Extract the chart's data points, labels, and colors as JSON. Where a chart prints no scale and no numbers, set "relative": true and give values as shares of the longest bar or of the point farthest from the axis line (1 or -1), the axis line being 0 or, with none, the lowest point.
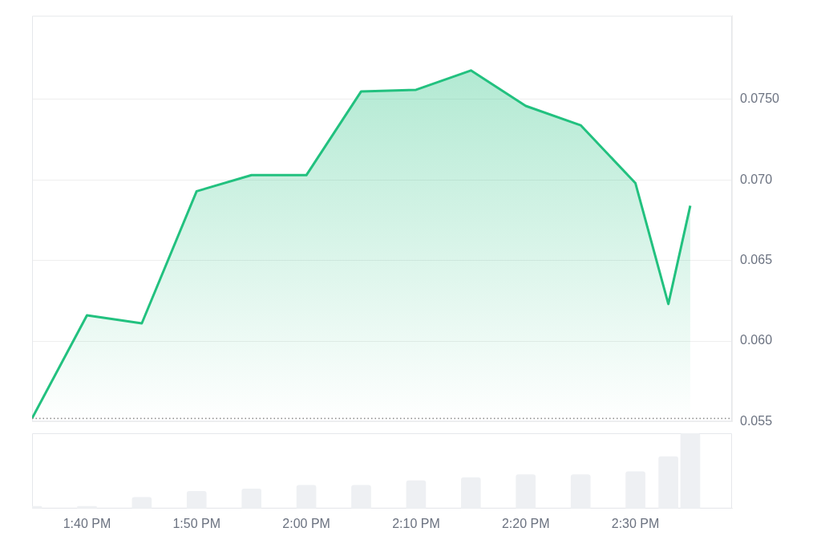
{
  "chart_data": [
    {
      "type": "area",
      "x": [
        13.5833,
        13.6667,
        13.75,
        13.8333,
        13.9167,
        14.0,
        14.0833,
        14.1667,
        14.25,
        14.3333,
        14.4167,
        14.5,
        14.55,
        14.5833
      ],
      "series": [
        {
          "color": "#22c17f",
          "values": [
            0.0552,
            0.0616,
            0.0611,
            0.0693,
            0.0703,
            0.0703,
            0.0755,
            0.0756,
            0.0768,
            0.0746,
            0.0734,
            0.0698,
            0.0623,
            0.0684
          ]
        }
      ],
      "xlim": [
        13.5833,
        14.6467
      ],
      "ylim": [
        0.055,
        0.0802
      ],
      "xticks": [
        {
          "value": 13.6667,
          "label": null
        },
        {
          "value": 13.8333,
          "label": null
        },
        {
          "value": 14.0,
          "label": null
        },
        {
          "value": 14.1667,
          "label": null
        },
        {
          "value": 14.3333,
          "label": null
        },
        {
          "value": 14.5,
          "label": null
        }
      ],
      "yticks": [
        0.055,
        {
          "value": 0.06,
          "label": "0.060"
        },
        0.065,
        {
          "value": 0.07,
          "label": "0.070"
        },
        {
          "value": 0.075,
          "label": "0.0750"
        }
      ],
      "ref_lines": [
        {
          "axis": "y",
          "value": 0.0552,
          "color": "#888888",
          "line_style": "dotted"
        }
      ],
      "grid": "y",
      "legend": false,
      "tick_labels": "y",
      "marker": "none",
      "line_style": "solid"
    },
    {
      "type": "bar",
      "relative": true,
      "x": [
        13.5833,
        13.6667,
        13.75,
        13.8333,
        13.9167,
        14.0,
        14.0833,
        14.1667,
        14.25,
        14.3333,
        14.4167,
        14.5,
        14.55,
        14.5833
      ],
      "series": [
        {
          "color": "#eef0f3",
          "values": [
            0.03,
            0.03,
            0.15,
            0.23,
            0.26,
            0.31,
            0.31,
            0.37,
            0.41,
            0.45,
            0.45,
            0.49,
            0.69,
            1
          ]
        }
      ],
      "xlim": [
        13.5833,
        14.6467
      ],
      "xticks": [
        {
          "value": 13.6667,
          "label": "1:40 PM"
        },
        {
          "value": 13.8333,
          "label": "1:50 PM"
        },
        {
          "value": 14.0,
          "label": "2:00 PM"
        },
        {
          "value": 14.1667,
          "label": "2:10 PM"
        },
        {
          "value": 14.3333,
          "label": "2:20 PM"
        },
        {
          "value": 14.5,
          "label": "2:30 PM"
        }
      ],
      "grid": false,
      "legend": false,
      "tick_labels": "x"
    }
  ]
}
